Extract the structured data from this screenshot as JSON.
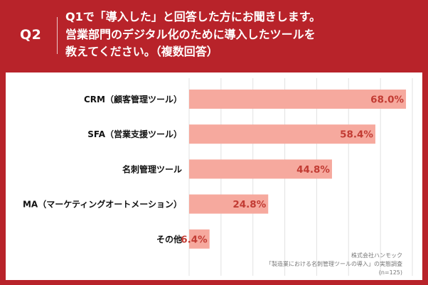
{
  "header": {
    "badge": "Q2",
    "question_lines": [
      "Q1で「導入した」と回答した方にお聞きします。",
      "営業部門のデジタル化のために導入したツールを",
      "教えてください。（複数回答）"
    ]
  },
  "source": {
    "company": "株式会社ハンモック",
    "survey": "「製造業における名刺管理ツールの導入」の実態調査",
    "sample": "(n=125)"
  },
  "colors": {
    "header_bg": "#B8232A",
    "bar_fill": "#F6A99E",
    "value_text": "#C23B33",
    "label_text": "#111111",
    "grid": "#E2E2E2"
  },
  "chart_data": {
    "type": "bar",
    "orientation": "horizontal",
    "categories": [
      "CRM（顧客管理ツール）",
      "SFA（営業支援ツール）",
      "名刺管理ツール",
      "MA（マーケティングオートメーション）",
      "その他"
    ],
    "values": [
      68.0,
      58.4,
      44.8,
      24.8,
      6.4
    ],
    "value_labels": [
      "68.0%",
      "58.4%",
      "44.8%",
      "24.8%",
      "6.4%"
    ],
    "unit": "%",
    "xlim": [
      0,
      70
    ],
    "grid": true,
    "title": "",
    "xlabel": "",
    "ylabel": ""
  }
}
